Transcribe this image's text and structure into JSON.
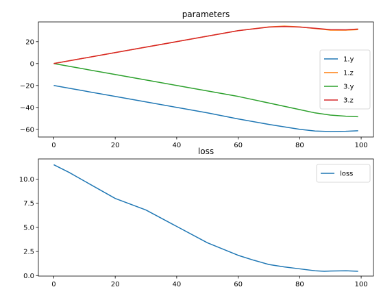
{
  "chart_data": [
    {
      "type": "line",
      "title": "parameters",
      "xlabel": "",
      "ylabel": "",
      "xlim": [
        -5,
        104
      ],
      "ylim": [
        -67,
        38
      ],
      "xticks": [
        0,
        20,
        40,
        60,
        80,
        100
      ],
      "yticks": [
        -60,
        -40,
        -20,
        0,
        20
      ],
      "xtick_labels": [
        "0",
        "20",
        "40",
        "60",
        "80",
        "100"
      ],
      "ytick_labels": [
        "−60",
        "−40",
        "−20",
        "0",
        "20"
      ],
      "grid": false,
      "legend_placement": "center-right",
      "series": [
        {
          "name": "1.y",
          "color": "#1f77b4",
          "x": [
            0,
            10,
            20,
            30,
            40,
            50,
            60,
            70,
            80,
            85,
            90,
            95,
            99
          ],
          "y": [
            -20,
            -25,
            -30,
            -35,
            -40,
            -45,
            -50.5,
            -55.5,
            -60,
            -61.5,
            -62,
            -61.8,
            -61.3
          ]
        },
        {
          "name": "1.z",
          "color": "#ff7f0e",
          "x": [
            0,
            10,
            20,
            30,
            40,
            50,
            60,
            70,
            75,
            80,
            85,
            90,
            95,
            99
          ],
          "y": [
            0,
            5,
            10,
            15,
            20,
            25,
            30,
            33.5,
            34.2,
            33.5,
            32,
            30.5,
            30.5,
            31
          ]
        },
        {
          "name": "3.y",
          "color": "#2ca02c",
          "x": [
            0,
            10,
            20,
            30,
            40,
            50,
            60,
            70,
            80,
            85,
            90,
            95,
            99
          ],
          "y": [
            0,
            -5,
            -10,
            -15,
            -20,
            -25,
            -30,
            -36,
            -42,
            -45,
            -47,
            -48,
            -48.5
          ]
        },
        {
          "name": "3.z",
          "color": "#d62728",
          "x": [
            0,
            10,
            20,
            30,
            40,
            50,
            60,
            70,
            75,
            80,
            85,
            90,
            95,
            99
          ],
          "y": [
            0,
            5,
            10,
            15,
            20,
            25,
            30,
            33.3,
            33.8,
            33.3,
            32.2,
            31,
            30.8,
            31.5
          ]
        }
      ]
    },
    {
      "type": "line",
      "title": "loss",
      "xlabel": "",
      "ylabel": "",
      "xlim": [
        -5,
        104
      ],
      "ylim": [
        -0.05,
        12.1
      ],
      "xticks": [
        0,
        20,
        40,
        60,
        80,
        100
      ],
      "yticks": [
        0,
        2.5,
        5.0,
        7.5,
        10.0
      ],
      "xtick_labels": [
        "0",
        "20",
        "40",
        "60",
        "80",
        "100"
      ],
      "ytick_labels": [
        "0.0",
        "2.5",
        "5.0",
        "7.5",
        "10.0"
      ],
      "grid": false,
      "legend_placement": "top-right",
      "series": [
        {
          "name": "loss",
          "color": "#1f77b4",
          "x": [
            0,
            5,
            10,
            20,
            30,
            40,
            50,
            60,
            65,
            70,
            75,
            80,
            85,
            88,
            90,
            95,
            99
          ],
          "y": [
            11.5,
            10.7,
            9.8,
            8.0,
            6.8,
            5.1,
            3.4,
            2.1,
            1.6,
            1.15,
            0.9,
            0.7,
            0.5,
            0.45,
            0.47,
            0.5,
            0.45
          ]
        }
      ]
    }
  ]
}
